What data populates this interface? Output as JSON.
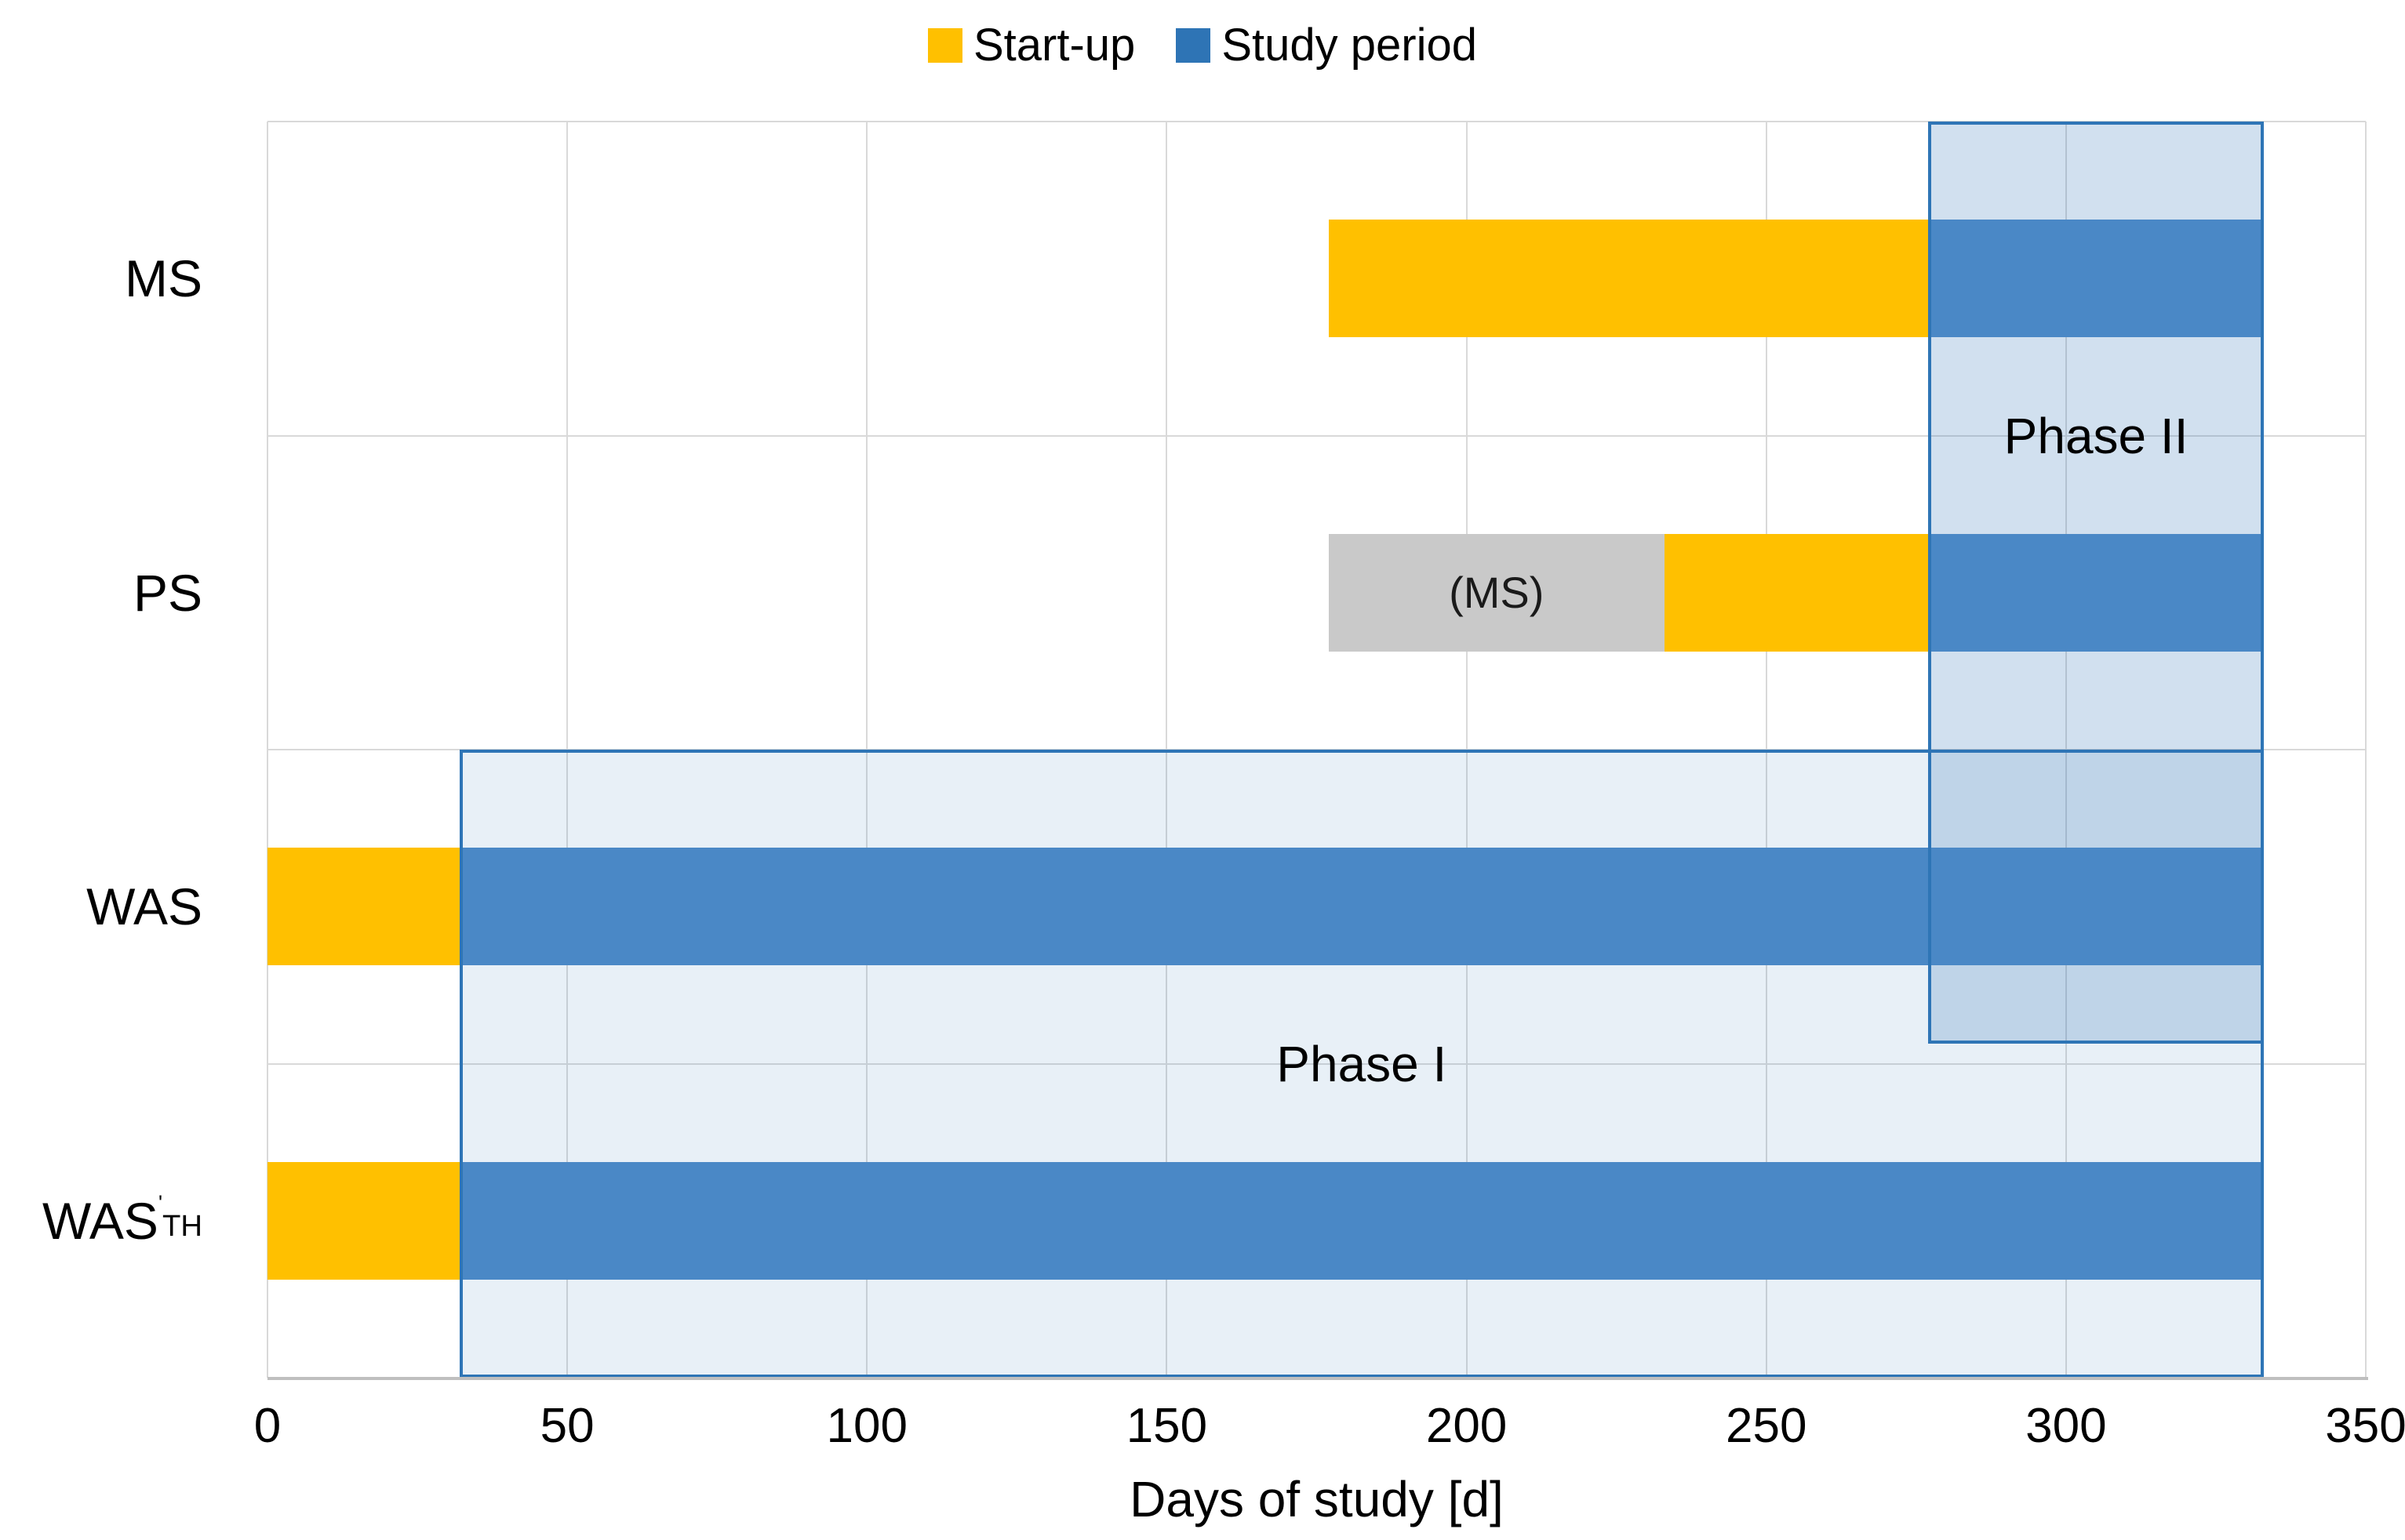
{
  "legend": [
    {
      "label": "Start-up",
      "color": "#FFC000"
    },
    {
      "label": "Study period",
      "color": "#2E74B5"
    }
  ],
  "chart_data": {
    "type": "bar",
    "subtype": "gantt-timeline",
    "title": "",
    "xlabel": "Days of study [d]",
    "xlim": [
      0,
      350
    ],
    "xticks": [
      0,
      50,
      100,
      150,
      200,
      250,
      300,
      350
    ],
    "grid": "on",
    "legend_position": "top-center",
    "categories": [
      {
        "key": "MS",
        "text": "MS"
      },
      {
        "key": "PS",
        "text": "PS"
      },
      {
        "key": "WAS",
        "text": "WAS"
      },
      {
        "key": "WAS_TH",
        "text": "WAS",
        "prime": "'",
        "sub": "TH"
      }
    ],
    "bars": {
      "MS": [
        {
          "type": "startup",
          "start": 177,
          "end": 277
        },
        {
          "type": "study",
          "start": 277,
          "end": 333
        }
      ],
      "PS": [
        {
          "type": "pre",
          "label": "(MS)",
          "start": 177,
          "end": 233
        },
        {
          "type": "startup",
          "start": 233,
          "end": 277
        },
        {
          "type": "study",
          "start": 277,
          "end": 333
        }
      ],
      "WAS": [
        {
          "type": "startup",
          "start": 0,
          "end": 32
        },
        {
          "type": "study",
          "start": 32,
          "end": 333
        }
      ],
      "WAS_TH": [
        {
          "type": "startup",
          "start": 0,
          "end": 32
        },
        {
          "type": "study",
          "start": 32,
          "end": 333
        }
      ]
    },
    "phases": [
      {
        "label": "Phase I",
        "start": 32,
        "end": 333,
        "top_pct": 50,
        "bottom_pct": 100,
        "label_y_pct": 75,
        "fill": "rgba(46,116,181,0.11)"
      },
      {
        "label": "Phase II",
        "start": 277,
        "end": 333,
        "top_pct": 0,
        "bottom_pct": 73.4,
        "label_y_pct": 25,
        "fill": "rgba(46,116,181,0.22)"
      }
    ],
    "colors": {
      "startup": "#FFC000",
      "study": "#4A88C6",
      "pre": "#C9C9C9",
      "phase_border": "#2E75B6",
      "gridline": "#D9D9D9",
      "axis_line": "#BFBFBF",
      "text": "#000000"
    }
  }
}
